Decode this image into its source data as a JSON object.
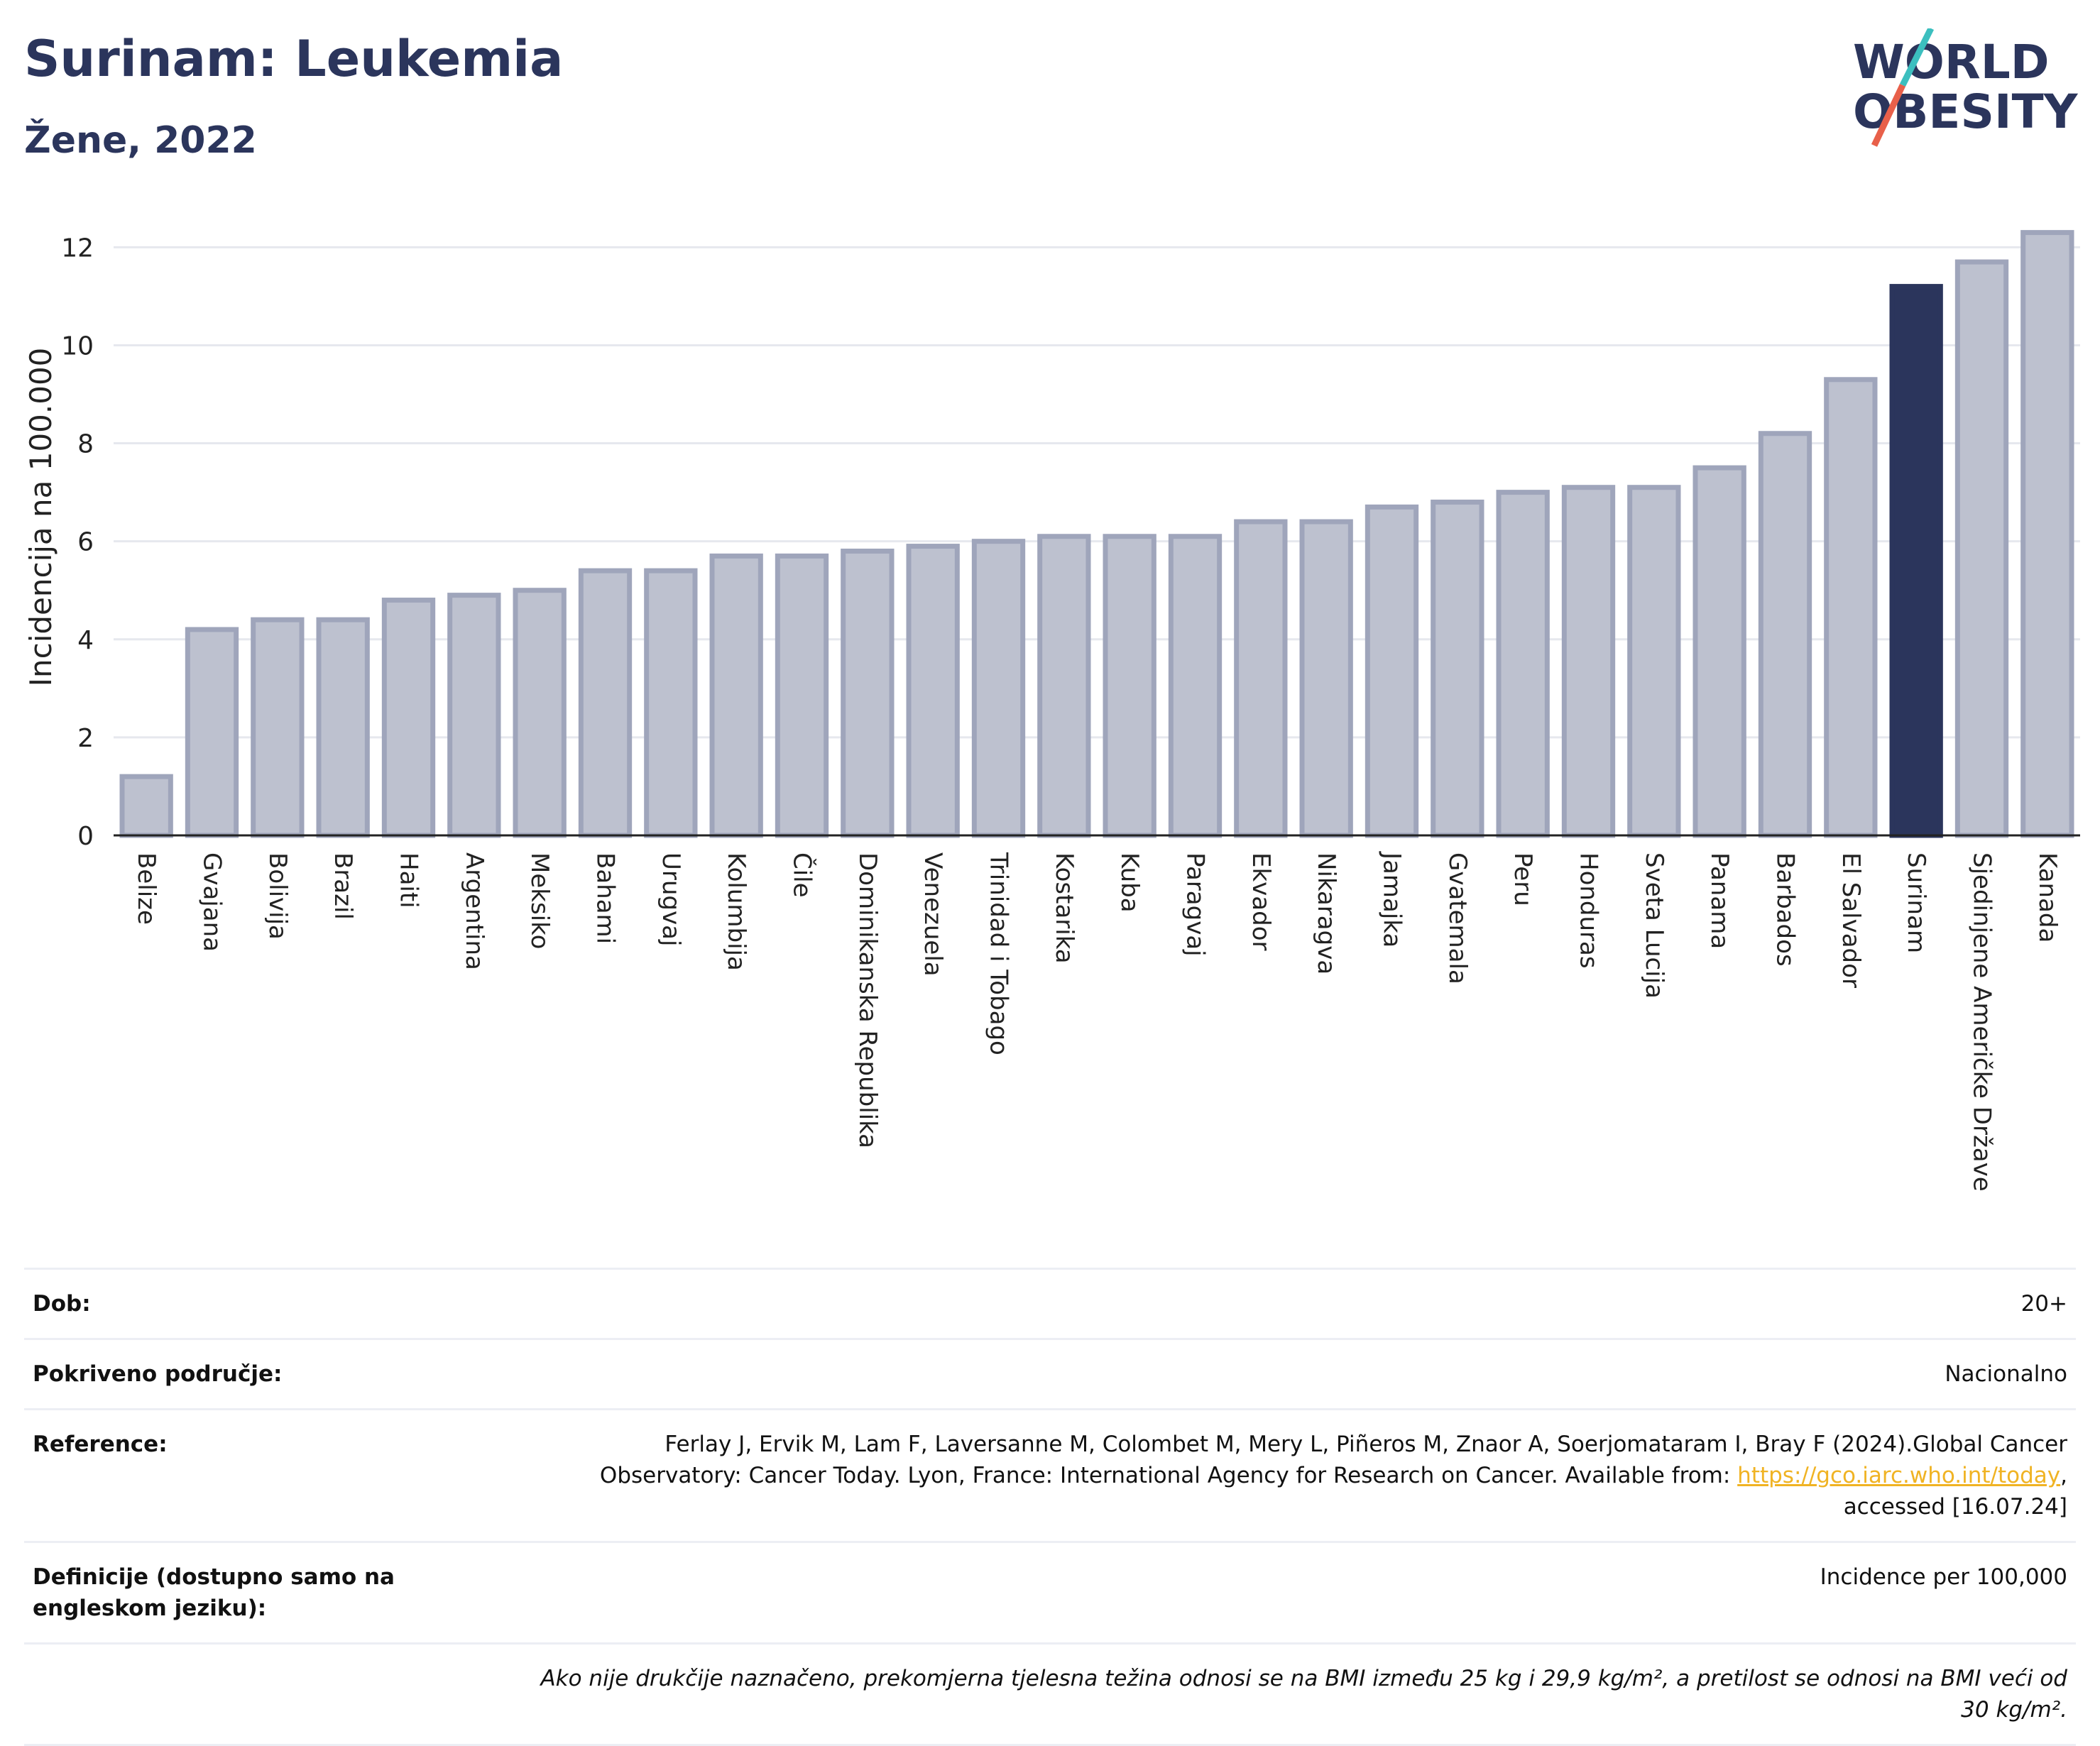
{
  "header": {
    "title": "Surinam: Leukemia",
    "subtitle": "Žene, 2022"
  },
  "logo": {
    "text_line1": "WORLD",
    "text_line2": "OBESITY",
    "colors": {
      "text": "#2b355c",
      "slash_teal": "#3cbfbf",
      "slash_red": "#e8604a"
    }
  },
  "colors": {
    "bar_default": "#bdc1cf",
    "bar_default_stroke": "#9fa5bb",
    "bar_highlight": "#2b355c",
    "grid": "#e6e8ee",
    "axis": "#222222"
  },
  "chart_data": {
    "type": "bar",
    "ylabel": "Incidencija na 100.000",
    "ylim": [
      0,
      12.7
    ],
    "yticks": [
      0,
      2,
      4,
      6,
      8,
      10,
      12
    ],
    "grid": true,
    "highlight": "Surinam",
    "categories": [
      "Belize",
      "Gvajana",
      "Bolivija",
      "Brazil",
      "Haiti",
      "Argentina",
      "Meksiko",
      "Bahami",
      "Urugvaj",
      "Kolumbija",
      "Čile",
      "Dominikanska Republika",
      "Venezuela",
      "Trinidad i Tobago",
      "Kostarika",
      "Kuba",
      "Paragvaj",
      "Ekvador",
      "Nikaragva",
      "Jamajka",
      "Gvatemala",
      "Peru",
      "Honduras",
      "Sveta Lucija",
      "Panama",
      "Barbados",
      "El Salvador",
      "Surinam",
      "Sjedinjene Američke Države",
      "Kanada"
    ],
    "values": [
      1.2,
      4.2,
      4.4,
      4.4,
      4.8,
      4.9,
      5.0,
      5.4,
      5.4,
      5.7,
      5.7,
      5.8,
      5.9,
      6.0,
      6.1,
      6.1,
      6.1,
      6.4,
      6.4,
      6.7,
      6.8,
      7.0,
      7.1,
      7.1,
      7.5,
      8.2,
      9.3,
      11.2,
      11.7,
      12.3
    ]
  },
  "info": {
    "age_label": "Dob:",
    "age_value": "20+",
    "coverage_label": "Pokriveno područje:",
    "coverage_value": "Nacionalno",
    "reference_label": "Reference:",
    "reference_text": "Ferlay J, Ervik M, Lam F, Laversanne M, Colombet M, Mery L, Piñeros M, Znaor A, Soerjomataram I, Bray F (2024).Global Cancer Observatory: Cancer Today. Lyon, France: International Agency for Research on Cancer. Available from: ",
    "reference_link": "https://gco.iarc.who.int/today",
    "reference_suffix": ", accessed [16.07.24]",
    "definitions_label": "Definicije (dostupno samo na engleskom jeziku):",
    "definitions_value": "Incidence per 100,000",
    "note": "Ako nije drukčije naznačeno, prekomjerna tjelesna težina odnosi se na BMI između 25 kg i 29,9 kg/m², a pretilost se odnosi na BMI veći od 30 kg/m²."
  }
}
